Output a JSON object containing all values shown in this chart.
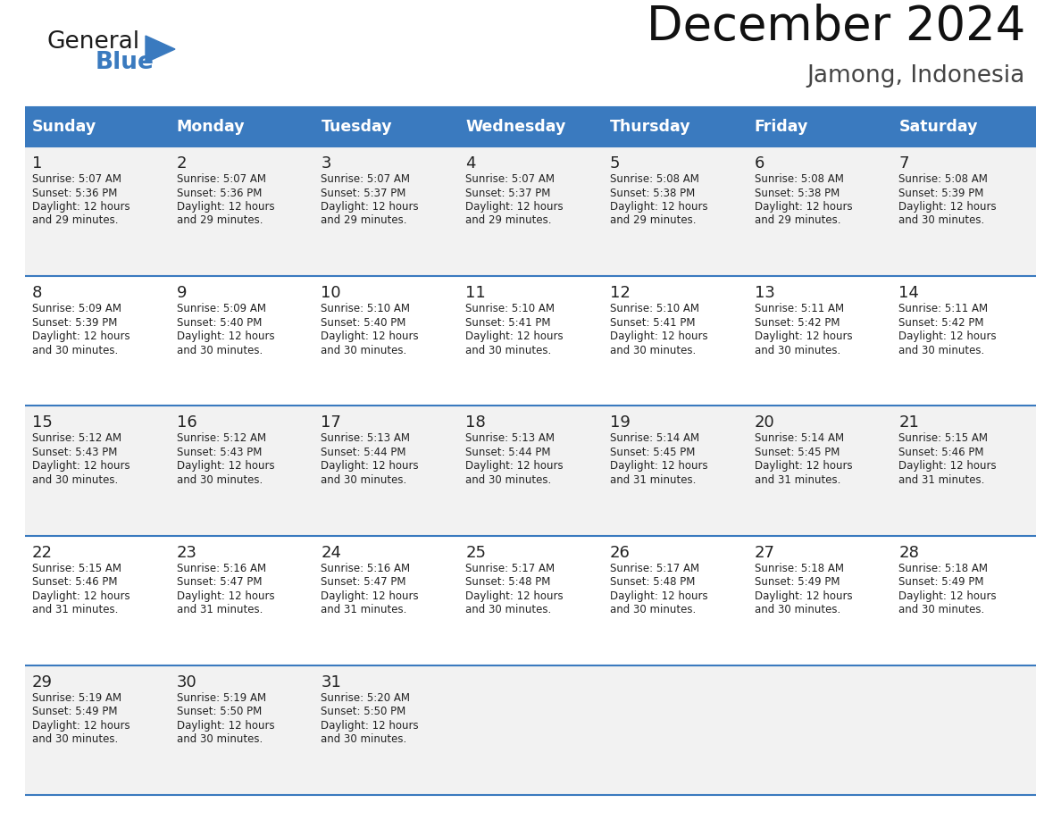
{
  "title": "December 2024",
  "subtitle": "Jamong, Indonesia",
  "days_of_week": [
    "Sunday",
    "Monday",
    "Tuesday",
    "Wednesday",
    "Thursday",
    "Friday",
    "Saturday"
  ],
  "header_bg_color": "#3a7abf",
  "header_text_color": "#ffffff",
  "cell_bg_color_odd": "#f2f2f2",
  "cell_bg_color_even": "#ffffff",
  "row_line_color": "#3a7abf",
  "text_color": "#222222",
  "logo_general_color": "#1a1a1a",
  "logo_blue_color": "#3a7abf",
  "calendar_data": [
    [
      {
        "day": 1,
        "sunrise": "5:07 AM",
        "sunset": "5:36 PM",
        "daylight": "12 hours and 29 minutes."
      },
      {
        "day": 2,
        "sunrise": "5:07 AM",
        "sunset": "5:36 PM",
        "daylight": "12 hours and 29 minutes."
      },
      {
        "day": 3,
        "sunrise": "5:07 AM",
        "sunset": "5:37 PM",
        "daylight": "12 hours and 29 minutes."
      },
      {
        "day": 4,
        "sunrise": "5:07 AM",
        "sunset": "5:37 PM",
        "daylight": "12 hours and 29 minutes."
      },
      {
        "day": 5,
        "sunrise": "5:08 AM",
        "sunset": "5:38 PM",
        "daylight": "12 hours and 29 minutes."
      },
      {
        "day": 6,
        "sunrise": "5:08 AM",
        "sunset": "5:38 PM",
        "daylight": "12 hours and 29 minutes."
      },
      {
        "day": 7,
        "sunrise": "5:08 AM",
        "sunset": "5:39 PM",
        "daylight": "12 hours and 30 minutes."
      }
    ],
    [
      {
        "day": 8,
        "sunrise": "5:09 AM",
        "sunset": "5:39 PM",
        "daylight": "12 hours and 30 minutes."
      },
      {
        "day": 9,
        "sunrise": "5:09 AM",
        "sunset": "5:40 PM",
        "daylight": "12 hours and 30 minutes."
      },
      {
        "day": 10,
        "sunrise": "5:10 AM",
        "sunset": "5:40 PM",
        "daylight": "12 hours and 30 minutes."
      },
      {
        "day": 11,
        "sunrise": "5:10 AM",
        "sunset": "5:41 PM",
        "daylight": "12 hours and 30 minutes."
      },
      {
        "day": 12,
        "sunrise": "5:10 AM",
        "sunset": "5:41 PM",
        "daylight": "12 hours and 30 minutes."
      },
      {
        "day": 13,
        "sunrise": "5:11 AM",
        "sunset": "5:42 PM",
        "daylight": "12 hours and 30 minutes."
      },
      {
        "day": 14,
        "sunrise": "5:11 AM",
        "sunset": "5:42 PM",
        "daylight": "12 hours and 30 minutes."
      }
    ],
    [
      {
        "day": 15,
        "sunrise": "5:12 AM",
        "sunset": "5:43 PM",
        "daylight": "12 hours and 30 minutes."
      },
      {
        "day": 16,
        "sunrise": "5:12 AM",
        "sunset": "5:43 PM",
        "daylight": "12 hours and 30 minutes."
      },
      {
        "day": 17,
        "sunrise": "5:13 AM",
        "sunset": "5:44 PM",
        "daylight": "12 hours and 30 minutes."
      },
      {
        "day": 18,
        "sunrise": "5:13 AM",
        "sunset": "5:44 PM",
        "daylight": "12 hours and 30 minutes."
      },
      {
        "day": 19,
        "sunrise": "5:14 AM",
        "sunset": "5:45 PM",
        "daylight": "12 hours and 31 minutes."
      },
      {
        "day": 20,
        "sunrise": "5:14 AM",
        "sunset": "5:45 PM",
        "daylight": "12 hours and 31 minutes."
      },
      {
        "day": 21,
        "sunrise": "5:15 AM",
        "sunset": "5:46 PM",
        "daylight": "12 hours and 31 minutes."
      }
    ],
    [
      {
        "day": 22,
        "sunrise": "5:15 AM",
        "sunset": "5:46 PM",
        "daylight": "12 hours and 31 minutes."
      },
      {
        "day": 23,
        "sunrise": "5:16 AM",
        "sunset": "5:47 PM",
        "daylight": "12 hours and 31 minutes."
      },
      {
        "day": 24,
        "sunrise": "5:16 AM",
        "sunset": "5:47 PM",
        "daylight": "12 hours and 31 minutes."
      },
      {
        "day": 25,
        "sunrise": "5:17 AM",
        "sunset": "5:48 PM",
        "daylight": "12 hours and 30 minutes."
      },
      {
        "day": 26,
        "sunrise": "5:17 AM",
        "sunset": "5:48 PM",
        "daylight": "12 hours and 30 minutes."
      },
      {
        "day": 27,
        "sunrise": "5:18 AM",
        "sunset": "5:49 PM",
        "daylight": "12 hours and 30 minutes."
      },
      {
        "day": 28,
        "sunrise": "5:18 AM",
        "sunset": "5:49 PM",
        "daylight": "12 hours and 30 minutes."
      }
    ],
    [
      {
        "day": 29,
        "sunrise": "5:19 AM",
        "sunset": "5:49 PM",
        "daylight": "12 hours and 30 minutes."
      },
      {
        "day": 30,
        "sunrise": "5:19 AM",
        "sunset": "5:50 PM",
        "daylight": "12 hours and 30 minutes."
      },
      {
        "day": 31,
        "sunrise": "5:20 AM",
        "sunset": "5:50 PM",
        "daylight": "12 hours and 30 minutes."
      },
      null,
      null,
      null,
      null
    ]
  ]
}
